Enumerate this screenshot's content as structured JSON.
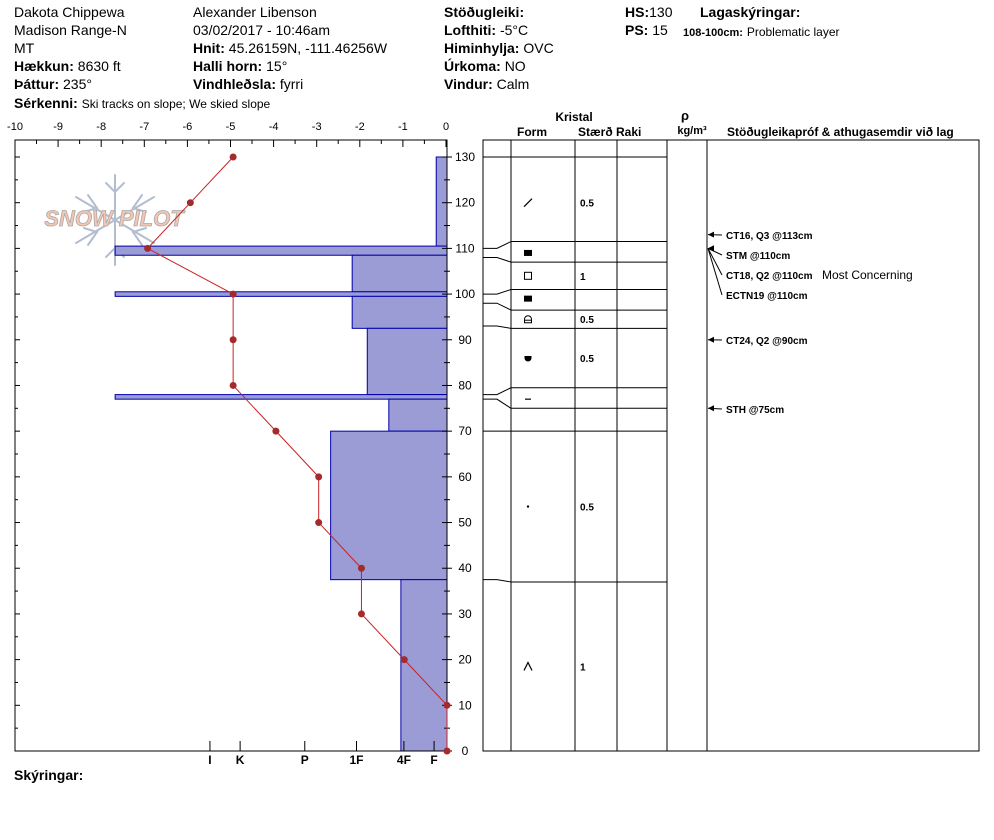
{
  "header": {
    "location": "Dakota Chippewa",
    "range": "Madison Range-N",
    "state": "MT",
    "elevation_label": "Hækkun:",
    "elevation_value": "8630 ft",
    "aspect_label": "Þáttur:",
    "aspect_value": "235°",
    "observer": "Alexander Libenson",
    "datetime": "03/02/2017 - 10:46am",
    "coords_label": "Hnit:",
    "coords_value": "45.26159N, -111.46256W",
    "slope_label": "Halli horn:",
    "slope_value": "15°",
    "wind_loading_label": "Vindhleðsla:",
    "wind_loading_value": "fyrri",
    "stability_label": "Stöðugleiki:",
    "air_temp_label": "Lofthiti:",
    "air_temp_value": "-5°C",
    "sky_label": "Himinhylja:",
    "sky_value": "OVC",
    "precip_label": "Úrkoma:",
    "precip_value": "NO",
    "wind_label": "Vindur:",
    "wind_value": "Calm",
    "hs_label": "HS:",
    "hs_value": "130",
    "ps_label": "PS:",
    "ps_value": "15",
    "layer_notes_label": "Lagaskýringar:",
    "layer_note_range": "108-100cm:",
    "layer_note_text": "Problematic layer",
    "remarks_label": "Sérkenni:",
    "remarks_value": "Ski tracks on slope; We skied slope",
    "comments_label": "Skýringar:"
  },
  "logo_text": "SNOW PILOT",
  "colors": {
    "hardness_fill": "#9b9bd6",
    "hardness_stroke": "#0000aa",
    "temp_line": "#cc2222",
    "temp_dot": "#a52a2a"
  },
  "columns": {
    "crystal": "Kristal",
    "form": "Form",
    "size": "Stærð",
    "moisture": "Raki",
    "density_symbol": "ρ",
    "density_unit": "kg/m³",
    "tests": "Stöðugleikapróf & athugasemdir við lag"
  },
  "chart_data": {
    "type": "snow_profile",
    "temperature_axis": {
      "range": [
        -10,
        0
      ],
      "ticks": [
        "-10",
        "-9",
        "-8",
        "-7",
        "-6",
        "-5",
        "-4",
        "-3",
        "-2",
        "-1",
        "0"
      ]
    },
    "height_axis": {
      "range": [
        0,
        130
      ],
      "ticks": [
        "0",
        "10",
        "20",
        "30",
        "40",
        "50",
        "60",
        "70",
        "80",
        "90",
        "100",
        "110",
        "120",
        "130"
      ]
    },
    "hardness_axis": {
      "labels": [
        "I",
        "K",
        "P",
        "1F",
        "4F",
        "F"
      ],
      "values": [
        5.5,
        4.8,
        3.3,
        2.1,
        1,
        0.3
      ]
    },
    "temperature_profile": [
      {
        "temp": -5,
        "height": 130
      },
      {
        "temp": -6,
        "height": 120
      },
      {
        "temp": -7,
        "height": 110
      },
      {
        "temp": -5,
        "height": 100
      },
      {
        "temp": -5,
        "height": 90
      },
      {
        "temp": -5,
        "height": 80
      },
      {
        "temp": -4,
        "height": 70
      },
      {
        "temp": -3,
        "height": 60
      },
      {
        "temp": -3,
        "height": 50
      },
      {
        "temp": -2,
        "height": 40
      },
      {
        "temp": -2,
        "height": 30
      },
      {
        "temp": -1,
        "height": 20
      },
      {
        "temp": 0,
        "height": 10
      },
      {
        "temp": 0,
        "height": 0
      }
    ],
    "hardness_layers": [
      {
        "top": 130,
        "bottom": 110.5,
        "hardness": 0.25
      },
      {
        "top": 110.5,
        "bottom": 108.5,
        "hardness": 7.7
      },
      {
        "top": 108.5,
        "bottom": 100.5,
        "hardness": 2.2
      },
      {
        "top": 100.5,
        "bottom": 99.5,
        "hardness": 7.7
      },
      {
        "top": 99.5,
        "bottom": 92.5,
        "hardness": 2.2
      },
      {
        "top": 92.5,
        "bottom": 78,
        "hardness": 1.85
      },
      {
        "top": 78,
        "bottom": 77,
        "hardness": 7.7
      },
      {
        "top": 77,
        "bottom": 70,
        "hardness": 1.35
      },
      {
        "top": 70,
        "bottom": 37.5,
        "hardness": 2.7
      },
      {
        "top": 37.5,
        "bottom": 0,
        "hardness": 1.07
      }
    ],
    "layer_boundaries": [
      130,
      111.5,
      107,
      101,
      96.5,
      92.5,
      79.5,
      75,
      70,
      37
    ],
    "grain_forms": [
      {
        "height": 120,
        "symbol": "decomposing",
        "size": "0.5"
      },
      {
        "height": 109,
        "symbol": "surface-hoar",
        "size": ""
      },
      {
        "height": 104,
        "symbol": "depth-hoar",
        "size": "1"
      },
      {
        "height": 99,
        "symbol": "surface-hoar",
        "size": ""
      },
      {
        "height": 94.5,
        "symbol": "faceted-rounded",
        "size": "0.5"
      },
      {
        "height": 86,
        "symbol": "melt-form",
        "size": "0.5"
      },
      {
        "height": 77,
        "symbol": "ice",
        "size": ""
      },
      {
        "height": 53.5,
        "symbol": "precipitation-particle",
        "size": "0.5"
      },
      {
        "height": 18.5,
        "symbol": "faceted",
        "size": "1"
      }
    ],
    "stability_tests": [
      {
        "height": 113,
        "text": "CT16, Q3 @113cm",
        "note": ""
      },
      {
        "height": 110,
        "text": "STM @110cm",
        "note": ""
      },
      {
        "height": 110,
        "text": "CT18, Q2 @110cm",
        "note": "Most Concerning"
      },
      {
        "height": 110,
        "text": "ECTN19 @110cm",
        "note": ""
      },
      {
        "height": 90,
        "text": "CT24, Q2 @90cm",
        "note": ""
      },
      {
        "height": 75,
        "text": "STH @75cm",
        "note": ""
      }
    ]
  }
}
